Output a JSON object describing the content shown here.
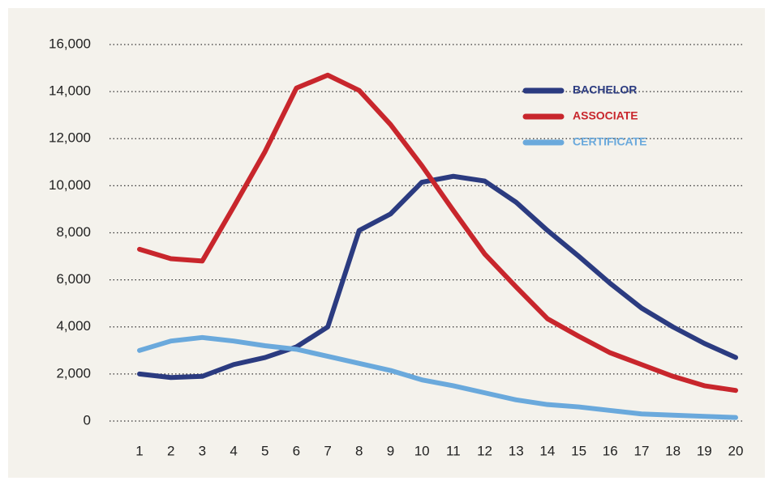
{
  "chart_data": {
    "type": "line",
    "categories": [
      "1",
      "2",
      "3",
      "4",
      "5",
      "6",
      "7",
      "8",
      "9",
      "10",
      "11",
      "12",
      "13",
      "14",
      "15",
      "16",
      "17",
      "18",
      "19",
      "20"
    ],
    "series": [
      {
        "name": "BACHELOR",
        "color": "#2b3b80",
        "values": [
          2000,
          1850,
          1900,
          2400,
          2700,
          3150,
          4000,
          8100,
          8800,
          10150,
          10400,
          10200,
          9300,
          8100,
          7000,
          5850,
          4800,
          4000,
          3300,
          2700
        ]
      },
      {
        "name": "ASSOCIATE",
        "color": "#c8262c",
        "values": [
          7300,
          6900,
          6800,
          9100,
          11450,
          14150,
          14700,
          14050,
          12600,
          10850,
          8950,
          7100,
          5700,
          4350,
          3600,
          2900,
          2400,
          1900,
          1500,
          1300
        ]
      },
      {
        "name": "CERTIFICATE",
        "color": "#6aa9dc",
        "values": [
          3000,
          3400,
          3550,
          3400,
          3200,
          3050,
          2750,
          2450,
          2150,
          1750,
          1500,
          1200,
          900,
          700,
          600,
          450,
          300,
          250,
          200,
          150
        ]
      }
    ],
    "ylim": [
      0,
      16000
    ],
    "yticks": [
      0,
      {
        "value": 2000,
        "label": "2,000"
      },
      {
        "value": 4000,
        "label": "4,000"
      },
      {
        "value": 6000,
        "label": "6,000"
      },
      {
        "value": 8000,
        "label": "8,000"
      },
      {
        "value": 10000,
        "label": "10,000"
      },
      {
        "value": 12000,
        "label": "12,000"
      },
      {
        "value": 14000,
        "label": "14,000"
      },
      {
        "value": 16000,
        "label": "16,000"
      }
    ],
    "grid": true,
    "legend": "upper right"
  }
}
